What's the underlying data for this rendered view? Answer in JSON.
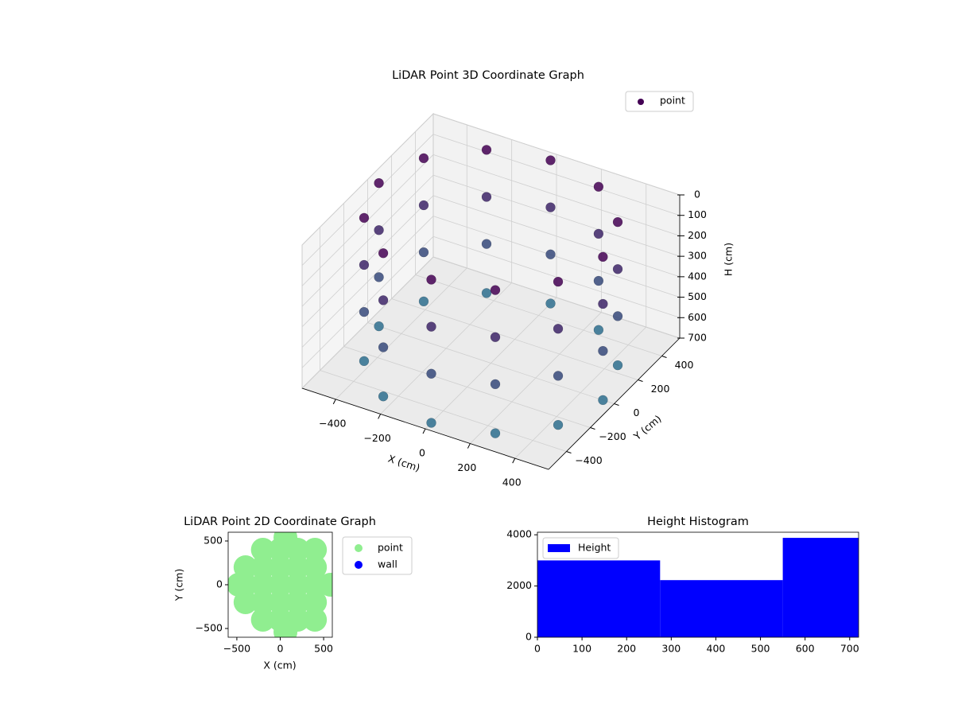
{
  "chart_data": [
    {
      "type": "scatter3d",
      "title": "LiDAR Point 3D Coordinate Graph",
      "xlabel": "X (cm)",
      "ylabel": "Y (cm)",
      "zlabel": "H (cm)",
      "xlim": [
        -550,
        550
      ],
      "ylim": [
        -550,
        550
      ],
      "zlim": [
        700,
        0
      ],
      "xticks": [
        {
          "value": -400,
          "label": "−400"
        },
        {
          "value": -200,
          "label": "−200"
        },
        0,
        200,
        400
      ],
      "yticks": [
        {
          "value": -400,
          "label": "−400"
        },
        {
          "value": -200,
          "label": "−200"
        },
        0,
        200,
        400
      ],
      "zticks": [
        0,
        100,
        200,
        300,
        400,
        500,
        600,
        700
      ],
      "colormap": [
        "#2e6f8e",
        "#440154"
      ],
      "legend": "upper right",
      "grid": true,
      "series": [
        {
          "name": "point",
          "color": "#440154",
          "x": [
            500,
            433,
            250,
            0,
            -250,
            -433,
            -500,
            -433,
            -250,
            0,
            250,
            433,
            500,
            433,
            250,
            0,
            -250,
            -433,
            -500,
            -433,
            -250,
            0,
            250,
            433,
            500,
            433,
            250,
            0,
            -250,
            -433,
            -500,
            -433,
            -250,
            0,
            250,
            433,
            500,
            433,
            250,
            0,
            -250,
            -433,
            -500,
            -433,
            -250,
            0,
            250,
            433
          ],
          "y": [
            0,
            250,
            433,
            500,
            433,
            250,
            0,
            -250,
            -433,
            -500,
            -433,
            -250,
            0,
            250,
            433,
            500,
            433,
            250,
            0,
            -250,
            -433,
            -500,
            -433,
            -250,
            0,
            250,
            433,
            500,
            433,
            250,
            0,
            -250,
            -433,
            -500,
            -433,
            -250,
            0,
            250,
            433,
            500,
            433,
            250,
            0,
            -250,
            -433,
            -500,
            -433,
            -250
          ],
          "z": [
            0,
            0,
            0,
            0,
            0,
            0,
            0,
            0,
            0,
            0,
            0,
            0,
            230,
            230,
            230,
            230,
            230,
            230,
            230,
            230,
            230,
            230,
            230,
            230,
            460,
            460,
            460,
            460,
            460,
            460,
            460,
            460,
            460,
            460,
            460,
            460,
            700,
            700,
            700,
            700,
            700,
            700,
            700,
            700,
            700,
            700,
            700,
            700
          ]
        }
      ]
    },
    {
      "type": "scatter",
      "title": "LiDAR Point 2D Coordinate Graph",
      "xlabel": "X (cm)",
      "ylabel": "Y (cm)",
      "xlim": [
        -600,
        600
      ],
      "ylim": [
        -600,
        600
      ],
      "xticks": [
        {
          "value": -500,
          "label": "−500"
        },
        0,
        500
      ],
      "yticks": [
        {
          "value": -500,
          "label": "−500"
        },
        0,
        500
      ],
      "legend": "outside right",
      "series": [
        {
          "name": "point",
          "color": "#90ee90",
          "x": [
            -400,
            -400,
            -400,
            -200,
            -200,
            -200,
            -200,
            -200,
            0,
            0,
            0,
            0,
            0,
            200,
            200,
            200,
            200,
            200,
            400,
            400,
            400,
            400,
            400,
            -480,
            580,
            60,
            60
          ],
          "y": [
            -200,
            0,
            200,
            -400,
            -200,
            0,
            200,
            400,
            -400,
            -200,
            0,
            200,
            400,
            -400,
            -200,
            0,
            200,
            400,
            -400,
            -200,
            0,
            200,
            400,
            0,
            0,
            540,
            -540
          ]
        },
        {
          "name": "wall",
          "color": "#0000ff",
          "x": [],
          "y": []
        }
      ]
    },
    {
      "type": "histogram",
      "title": "Height Histogram",
      "xlim": [
        0,
        720
      ],
      "ylim": [
        0,
        4100
      ],
      "xticks": [
        0,
        100,
        200,
        300,
        400,
        500,
        600,
        700
      ],
      "yticks": [
        0,
        2000,
        4000
      ],
      "legend": "upper left",
      "bins": [
        0,
        275,
        550,
        720
      ],
      "series": [
        {
          "name": "Height",
          "color": "#0000ff",
          "values": [
            3000,
            2230,
            3880
          ]
        }
      ]
    }
  ]
}
